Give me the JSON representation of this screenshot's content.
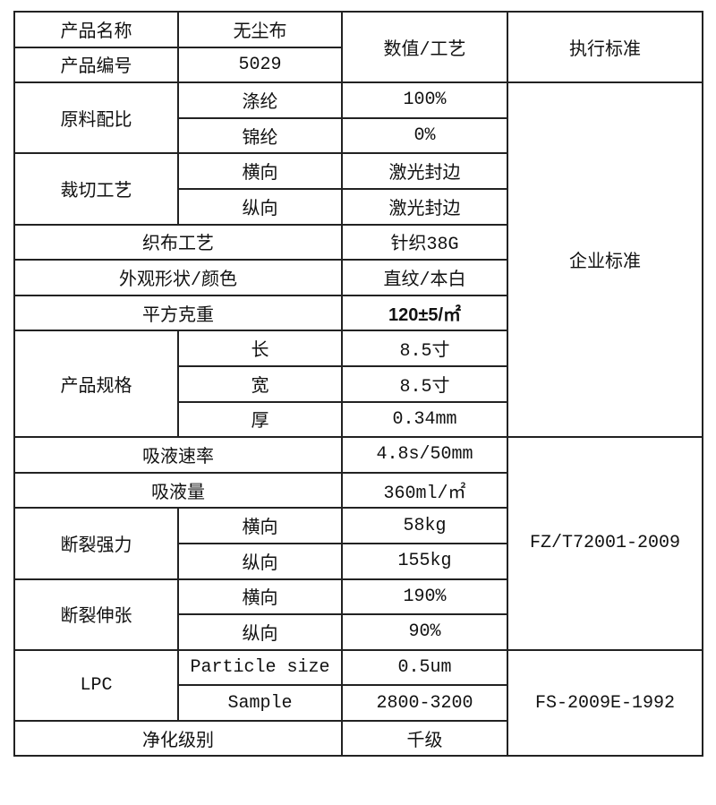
{
  "header": {
    "product_name_label": "产品名称",
    "product_name": "无尘布",
    "product_code_label": "产品编号",
    "product_code": "5029",
    "value_header": "数值/工艺",
    "standard_header": "执行标准"
  },
  "material": {
    "label": "原料配比",
    "items": [
      {
        "name": "涤纶",
        "value": "100%"
      },
      {
        "name": "锦纶",
        "value": "0%"
      }
    ]
  },
  "cutting": {
    "label": "裁切工艺",
    "items": [
      {
        "name": "横向",
        "value": "激光封边"
      },
      {
        "name": "纵向",
        "value": "激光封边"
      }
    ]
  },
  "weaving": {
    "label": "织布工艺",
    "value": "针织38G"
  },
  "appearance": {
    "label": "外观形状/颜色",
    "value": "直纹/本白"
  },
  "weight": {
    "label": "平方克重",
    "value": "120±5/㎡"
  },
  "spec": {
    "label": "产品规格",
    "items": [
      {
        "name": "长",
        "value": "8.5寸"
      },
      {
        "name": "宽",
        "value": "8.5寸"
      },
      {
        "name": "厚",
        "value": "0.34mm"
      }
    ]
  },
  "absorb_rate": {
    "label": "吸液速率",
    "value": "4.8s/50mm"
  },
  "absorb_amount": {
    "label": "吸液量",
    "value": "360ml/㎡"
  },
  "break_strength": {
    "label": "断裂强力",
    "items": [
      {
        "name": "横向",
        "value": "58kg"
      },
      {
        "name": "纵向",
        "value": "155kg"
      }
    ]
  },
  "break_elongation": {
    "label": "断裂伸张",
    "items": [
      {
        "name": "横向",
        "value": "190%"
      },
      {
        "name": "纵向",
        "value": "90%"
      }
    ]
  },
  "lpc": {
    "label": "LPC",
    "items": [
      {
        "name": "Particle size",
        "value": "0.5um"
      },
      {
        "name": "Sample",
        "value": "2800-3200"
      }
    ]
  },
  "cleanliness": {
    "label": "净化级别",
    "value": "千级"
  },
  "standards": {
    "enterprise": "企业标准",
    "fz": "FZ/T72001-2009",
    "fs": "FS-2009E-1992"
  }
}
